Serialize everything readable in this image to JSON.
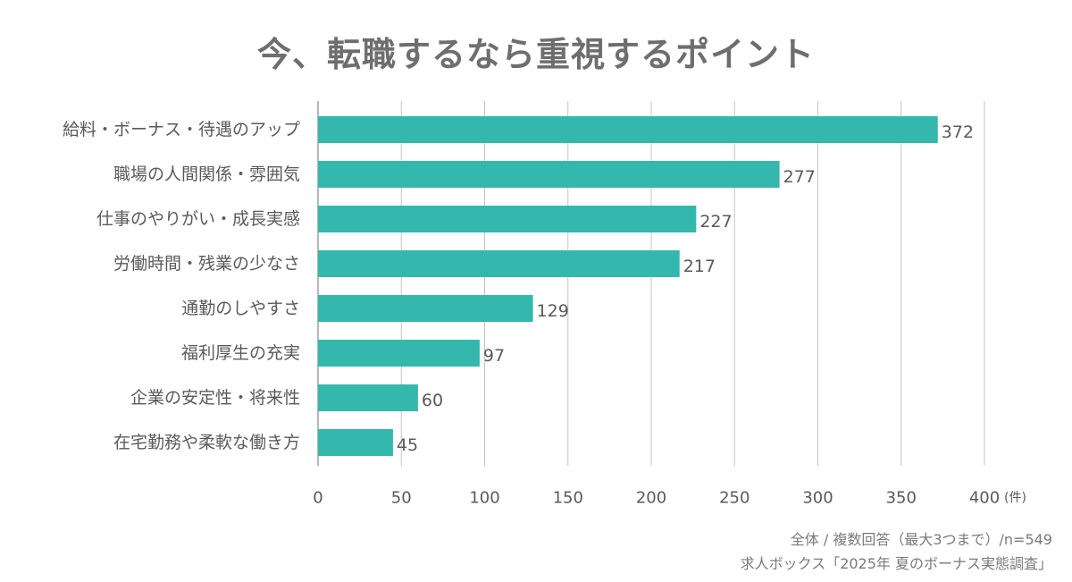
{
  "title": "今、転職するなら重視するポイント",
  "chart_data": {
    "type": "bar",
    "orientation": "horizontal",
    "categories": [
      "給料・ボーナス・待遇のアップ",
      "職場の人間関係・雰囲気",
      "仕事のやりがい・成長実感",
      "労働時間・残業の少なさ",
      "通勤のしやすさ",
      "福利厚生の充実",
      "企業の安定性・将来性",
      "在宅勤務や柔軟な働き方"
    ],
    "values": [
      372,
      277,
      227,
      217,
      129,
      97,
      60,
      45
    ],
    "xlim": [
      0,
      400
    ],
    "x_ticks": [
      0,
      50,
      100,
      150,
      200,
      250,
      300,
      350,
      400
    ],
    "x_unit": "(件)",
    "grid": true,
    "bar_color": "#34b8ad",
    "show_value_labels": true
  },
  "notes": {
    "line1": "全体 / 複数回答（最大3つまで）/n=549",
    "line2": "求人ボックス「2025年 夏のボーナス実態調査」"
  },
  "colors": {
    "bar": "#34b8ad",
    "grid": "#c4c4c4",
    "text": "#5a5a5a"
  }
}
